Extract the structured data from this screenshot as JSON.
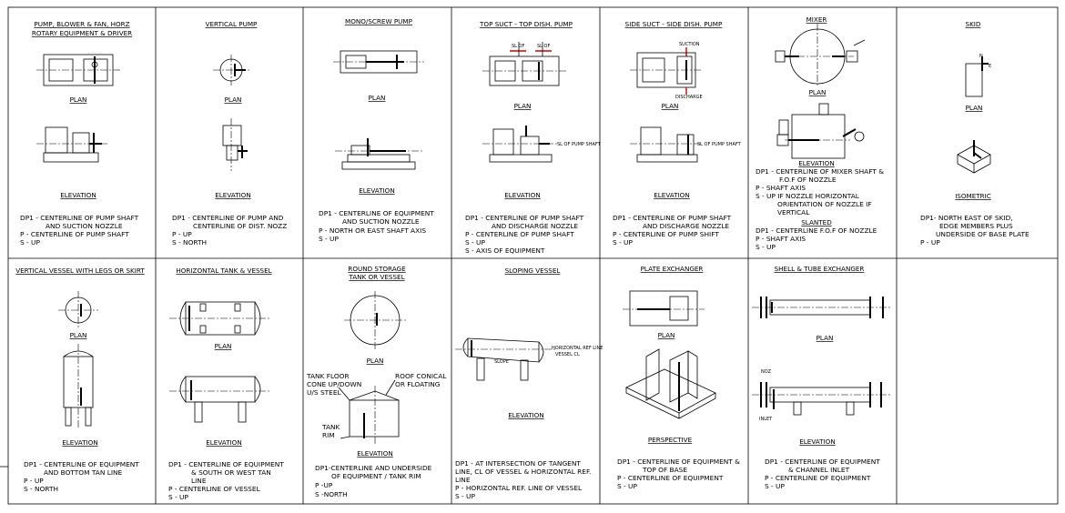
{
  "cells": [
    {
      "id": "pump-horz",
      "title": [
        "PUMP, BLOWER & FAN, HORZ",
        "ROTARY EQUIPMENT & DRIVER"
      ],
      "labels": [
        "PLAN",
        "ELEVATION"
      ],
      "notes": [
        "DP1 - CENTERLINE OF PUMP SHAFT",
        "AND SUCTION NOZZLE",
        "P - CENTERLINE OF PUMP SHAFT",
        "S - UP"
      ]
    },
    {
      "id": "vertical-pump",
      "title": [
        "VERTICAL PUMP"
      ],
      "labels": [
        "PLAN",
        "ELEVATION"
      ],
      "notes": [
        "DP1 - CENTERLINE OF PUMP AND",
        "CENTERLINE OF DIST. NOZZ",
        "P - UP",
        "S - NORTH"
      ]
    },
    {
      "id": "mono-screw-pump",
      "title": [
        "MONO/SCREW PUMP"
      ],
      "labels": [
        "PLAN",
        "ELEVATION"
      ],
      "notes": [
        "DP1 - CENTERLINE OF EQUIPMENT",
        "AND SUCTION NOZZLE",
        "P - NORTH OR EAST SHAFT AXIS",
        "S - UP"
      ]
    },
    {
      "id": "top-suct-pump",
      "title": [
        "TOP SUCT - TOP DISH. PUMP"
      ],
      "labels": [
        "PLAN",
        "ELEVATION"
      ],
      "notes": [
        "DP1 - CENTERLINE OF PUMP SHAFT",
        "AND DISCHARGE NOZZLE",
        "P - CENTERLINE OF PUMP SHAFT",
        "S - UP",
        "S - AXIS OF EQUIPMENT"
      ]
    },
    {
      "id": "side-suct-pump",
      "title": [
        "SIDE SUCT - SIDE DISH. PUMP"
      ],
      "labels": [
        "PLAN",
        "ELEVATION"
      ],
      "notes": [
        "DP1 - CENTERLINE OF PUMP SHAFT",
        "AND DISCHARGE NOZZLE",
        "P - CENTERLINE OF PUMP SHIFT",
        "S - UP"
      ]
    },
    {
      "id": "mixer",
      "title": [
        "MIXER"
      ],
      "labels": [
        "PLAN",
        "ELEVATION"
      ],
      "notes": [
        "DP1 - CENTERLINE OF MIXER SHAFT &",
        "F.O.F OF NOZZLE",
        "P - SHAFT AXIS",
        "S - UP IF NOZZLE HORIZONTAL",
        "ORIENTATION OF NOZZLE IF",
        "VERTICAL",
        "SLANTED",
        "DP1 - CENTERLINE F.O.F OF NOZZLE",
        "P - SHAFT AXIS",
        "S - UP"
      ]
    },
    {
      "id": "skid",
      "title": [
        "SKID"
      ],
      "labels": [
        "PLAN",
        "ISOMETRIC"
      ],
      "notes": [
        "DP1- NORTH EAST OF SKID,",
        "EDGE MEMBERS PLUS",
        "UNDERSIDE OF BASE PLATE",
        "P - UP"
      ]
    },
    {
      "id": "vertical-vessel",
      "title": [
        "VERTICAL VESSEL WITH LEGS OR SKIRT"
      ],
      "labels": [
        "PLAN",
        "ELEVATION"
      ],
      "notes": [
        "DP1 - CENTERLINE OF EQUIPMENT",
        "AND BOTTOM TAN LINE",
        "P - UP",
        "S - NORTH"
      ]
    },
    {
      "id": "horizontal-tank",
      "title": [
        "HORIZONTAL TANK & VESSEL"
      ],
      "labels": [
        "PLAN",
        "ELEVATION"
      ],
      "notes": [
        "DP1 - CENTERLINE OF EQUIPMENT",
        "& SOUTH OR WEST TAN",
        "LINE",
        "P - CENTERLINE OF VESSEL",
        "S - UP"
      ]
    },
    {
      "id": "round-storage",
      "title": [
        "ROUND STORAGE",
        "TANK OR VESSEL"
      ],
      "labels": [
        "PLAN",
        "ELEVATION"
      ],
      "callouts": [
        "TANK FLOOR",
        "CONE UP/DOWN",
        "U/S STEEL",
        "ROOF CONICAL",
        "OR FLOATING",
        "TANK",
        "RIM"
      ],
      "notes": [
        "DP1-CENTERLINE AND UNDERSIDE",
        "OF EQUIPMENT / TANK RIM",
        "P -UP",
        "S -NORTH"
      ]
    },
    {
      "id": "sloping-vessel",
      "title": [
        "SLOPING VESSEL"
      ],
      "labels": [
        "ELEVATION"
      ],
      "callouts": [
        "HORIZONTAL REF LINE",
        "VESSEL CL",
        "SLOPE"
      ],
      "notes": [
        "DP1 - AT INTERSECTION OF TANGENT",
        "LINE, CL OF VESSEL & HORIZONTAL REF.",
        "LINE",
        "P - HORIZONTAL REF. LINE OF VESSEL",
        "S - UP"
      ]
    },
    {
      "id": "plate-exchanger",
      "title": [
        "PLATE EXCHANGER"
      ],
      "labels": [
        "PLAN",
        "PERSPECTIVE"
      ],
      "notes": [
        "DP1 - CENTERLINE OF EQUIPMENT &",
        "TOP OF BASE",
        "P - CENTERLINE OF EQUIPMENT",
        "S - UP"
      ]
    },
    {
      "id": "shell-tube",
      "title": [
        "SHELL & TUBE EXCHANGER"
      ],
      "labels": [
        "PLAN",
        "ELEVATION"
      ],
      "callouts": [
        "NOZ",
        "INLET"
      ],
      "notes": [
        "DP1 - CENTERLINE OF EQUIPMENT",
        "& CHANNEL INLET",
        "P - CENTERLINE OF EQUIPMENT",
        "S - UP"
      ]
    },
    {
      "id": "empty",
      "title": [],
      "labels": [],
      "notes": []
    }
  ],
  "small_tags": [
    "SL OF",
    "SL OF",
    "SUCTION",
    "DISCHARGE",
    "SL OF PUMP SHAFT",
    "SL OF PUMP SHAFT",
    "N",
    "E"
  ]
}
